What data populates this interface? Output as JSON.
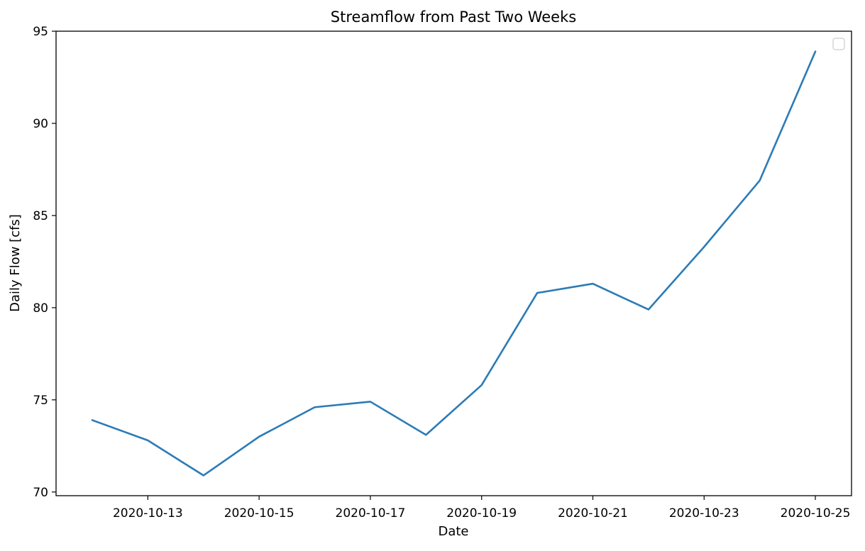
{
  "chart_data": {
    "type": "line",
    "title": "Streamflow from Past Two Weeks",
    "xlabel": "Date",
    "ylabel": "Daily Flow [cfs]",
    "x": [
      "2020-10-12",
      "2020-10-13",
      "2020-10-14",
      "2020-10-15",
      "2020-10-16",
      "2020-10-17",
      "2020-10-18",
      "2020-10-19",
      "2020-10-20",
      "2020-10-21",
      "2020-10-22",
      "2020-10-23",
      "2020-10-24",
      "2020-10-25"
    ],
    "series": [
      {
        "values": [
          73.9,
          72.8,
          70.9,
          73.0,
          74.6,
          74.9,
          73.1,
          75.8,
          80.8,
          81.3,
          79.9,
          83.3,
          86.9,
          93.9
        ]
      }
    ],
    "xlim": [
      "2020-10-11.35",
      "2020-10-25.65"
    ],
    "ylim": [
      69.8,
      95.0
    ],
    "xticks": [
      "2020-10-13",
      "2020-10-15",
      "2020-10-17",
      "2020-10-19",
      "2020-10-21",
      "2020-10-23",
      "2020-10-25"
    ],
    "yticks": [
      70,
      75,
      80,
      85,
      90,
      95
    ],
    "grid": false,
    "legend": {
      "placement": "top-right",
      "entries": []
    },
    "colors": {
      "line": "#2c7bb6",
      "axes": "#000000",
      "background": "#ffffff"
    }
  }
}
